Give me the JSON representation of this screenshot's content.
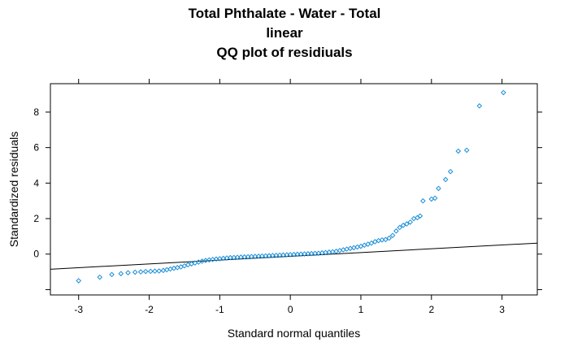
{
  "chart_data": {
    "type": "scatter",
    "title": [
      "Total Phthalate - Water - Total",
      "linear",
      "QQ plot of residiuals"
    ],
    "xlabel": "Standard normal quantiles",
    "ylabel": "Standardized residuals",
    "xlim": [
      -3.4,
      3.5
    ],
    "ylim": [
      -2.3,
      9.6
    ],
    "xticks": [
      -3,
      -2,
      -1,
      0,
      1,
      2,
      3
    ],
    "yticks": [
      0,
      2,
      4,
      6,
      8
    ],
    "ytick_labels": [
      "0",
      "2",
      "4",
      "6",
      "8"
    ],
    "extra_y_ticks": [
      -2
    ],
    "grid": false,
    "point_color": "#1a8fd8",
    "line_color": "#000000",
    "reference_line": {
      "x": [
        -3.4,
        3.5
      ],
      "y": [
        -0.85,
        0.62
      ]
    },
    "points": {
      "x": [
        -3.0,
        -2.7,
        -2.53,
        -2.4,
        -2.3,
        -2.2,
        -2.12,
        -2.05,
        -1.98,
        -1.92,
        -1.86,
        -1.8,
        -1.75,
        -1.7,
        -1.65,
        -1.6,
        -1.55,
        -1.5,
        -1.45,
        -1.4,
        -1.35,
        -1.3,
        -1.25,
        -1.2,
        -1.15,
        -1.1,
        -1.05,
        -1.0,
        -0.95,
        -0.9,
        -0.85,
        -0.8,
        -0.75,
        -0.7,
        -0.65,
        -0.6,
        -0.55,
        -0.5,
        -0.45,
        -0.4,
        -0.35,
        -0.3,
        -0.25,
        -0.2,
        -0.15,
        -0.1,
        -0.05,
        0.0,
        0.05,
        0.1,
        0.15,
        0.2,
        0.25,
        0.3,
        0.35,
        0.4,
        0.45,
        0.5,
        0.55,
        0.6,
        0.65,
        0.7,
        0.75,
        0.8,
        0.85,
        0.9,
        0.95,
        1.0,
        1.05,
        1.1,
        1.15,
        1.2,
        1.25,
        1.3,
        1.35,
        1.4,
        1.45,
        1.5,
        1.55,
        1.6,
        1.65,
        1.7,
        1.75,
        1.8,
        1.84,
        1.88,
        2.0,
        2.05,
        2.1,
        2.2,
        2.27,
        2.38,
        2.5,
        2.68,
        3.02
      ],
      "y": [
        -1.5,
        -1.3,
        -1.15,
        -1.1,
        -1.05,
        -1.02,
        -1.0,
        -0.98,
        -0.97,
        -0.96,
        -0.95,
        -0.92,
        -0.88,
        -0.84,
        -0.8,
        -0.76,
        -0.72,
        -0.66,
        -0.6,
        -0.55,
        -0.5,
        -0.45,
        -0.4,
        -0.36,
        -0.33,
        -0.3,
        -0.28,
        -0.26,
        -0.24,
        -0.22,
        -0.2,
        -0.19,
        -0.18,
        -0.17,
        -0.16,
        -0.15,
        -0.14,
        -0.13,
        -0.12,
        -0.11,
        -0.1,
        -0.09,
        -0.08,
        -0.07,
        -0.06,
        -0.05,
        -0.04,
        -0.03,
        -0.02,
        -0.01,
        0.0,
        0.01,
        0.02,
        0.03,
        0.04,
        0.05,
        0.07,
        0.09,
        0.11,
        0.13,
        0.16,
        0.2,
        0.24,
        0.28,
        0.32,
        0.36,
        0.4,
        0.44,
        0.5,
        0.56,
        0.62,
        0.7,
        0.76,
        0.8,
        0.82,
        0.9,
        1.05,
        1.3,
        1.5,
        1.62,
        1.7,
        1.8,
        2.0,
        2.05,
        2.15,
        3.0,
        3.1,
        3.15,
        3.7,
        4.2,
        4.65,
        5.8,
        5.85,
        8.35,
        9.1
      ]
    }
  }
}
